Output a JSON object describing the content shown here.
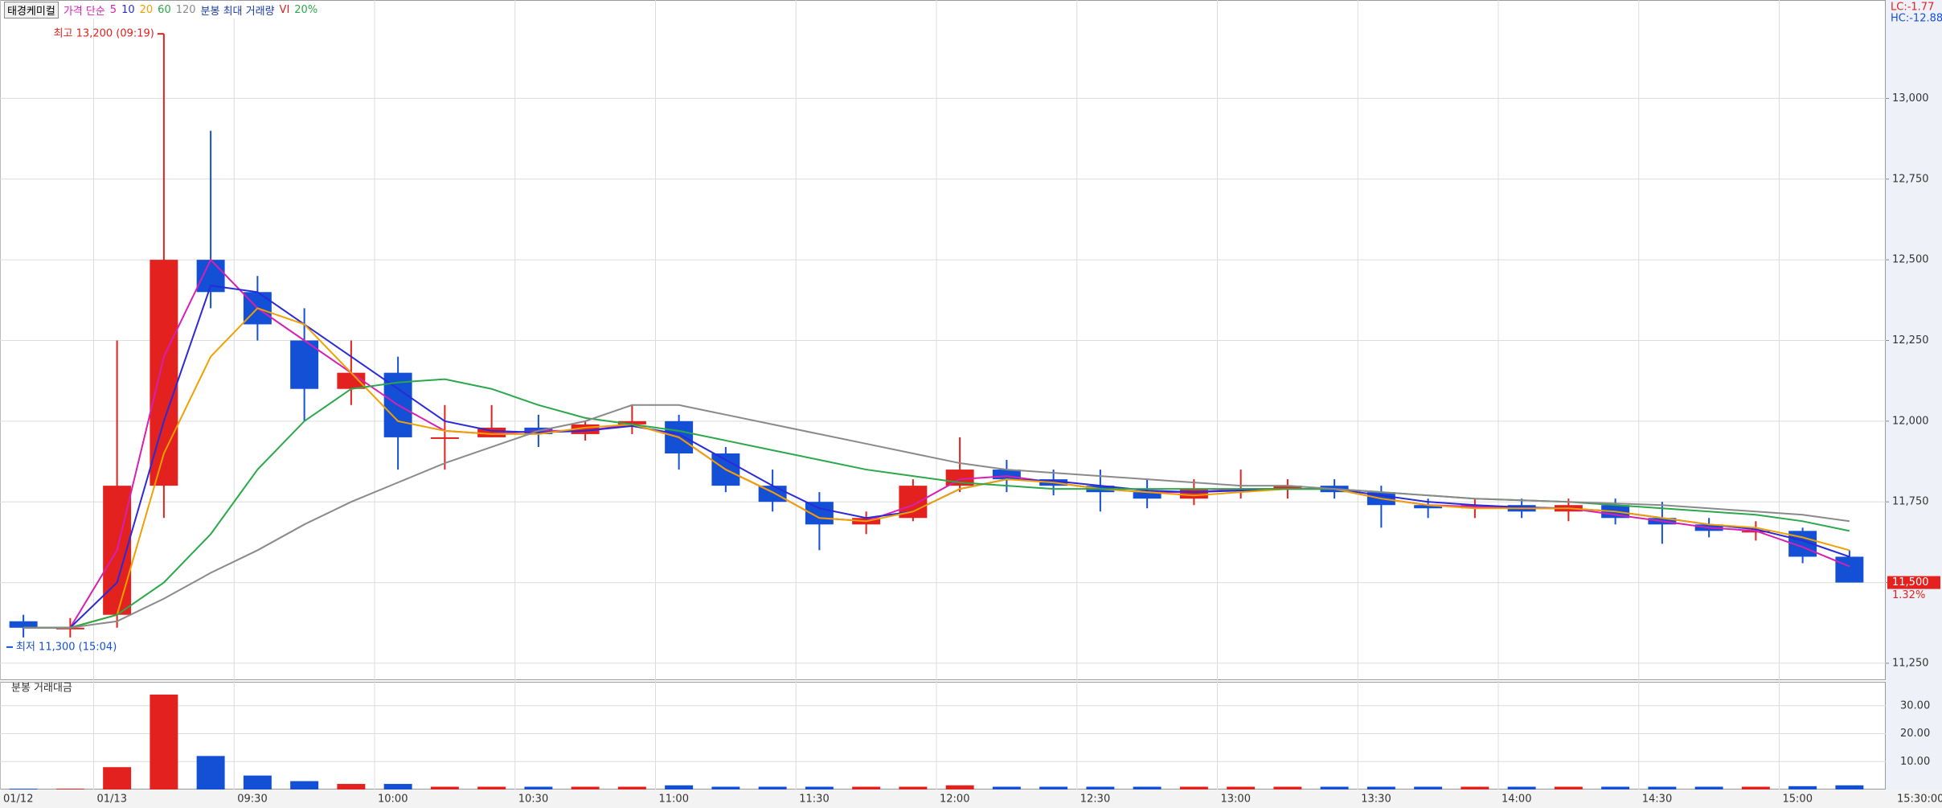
{
  "chart_data": [
    {
      "type": "candlestick",
      "title": "태경케미컬",
      "legend_prefix": "가격 단순",
      "indicators": [
        "분봉 최대 거래량",
        "VI",
        "20%"
      ],
      "categories": [
        "01/12",
        null,
        "01/13",
        null,
        null,
        "09:30",
        null,
        null,
        "10:00",
        null,
        null,
        "10:30",
        null,
        null,
        "11:00",
        null,
        null,
        "11:30",
        null,
        null,
        "12:00",
        null,
        null,
        "12:30",
        null,
        null,
        "13:00",
        null,
        null,
        "13:30",
        null,
        null,
        "14:00",
        null,
        null,
        "14:30",
        null,
        null,
        "15:00",
        null
      ],
      "open": [
        11380,
        11360,
        11400,
        11800,
        12500,
        12400,
        12250,
        12100,
        12150,
        11950,
        11950,
        11980,
        11960,
        11990,
        12000,
        11900,
        11800,
        11750,
        11680,
        11700,
        11800,
        11850,
        11820,
        11800,
        11780,
        11760,
        11790,
        11790,
        11800,
        11780,
        11740,
        11730,
        11740,
        11720,
        11740,
        11700,
        11680,
        11660,
        11660,
        11580
      ],
      "high": [
        11400,
        11390,
        12250,
        13200,
        12900,
        12450,
        12350,
        12250,
        12200,
        12050,
        12050,
        12020,
        12000,
        12050,
        12020,
        11920,
        11850,
        11780,
        11720,
        11820,
        11950,
        11880,
        11850,
        11850,
        11820,
        11820,
        11850,
        11820,
        11820,
        11800,
        11760,
        11760,
        11760,
        11760,
        11760,
        11750,
        11700,
        11690,
        11670,
        11600
      ],
      "low": [
        11330,
        11330,
        11360,
        11700,
        12350,
        12250,
        12000,
        12050,
        11850,
        11850,
        11950,
        11920,
        11940,
        11960,
        11850,
        11780,
        11720,
        11600,
        11650,
        11690,
        11780,
        11780,
        11770,
        11720,
        11730,
        11740,
        11760,
        11760,
        11760,
        11670,
        11700,
        11700,
        11700,
        11690,
        11680,
        11620,
        11640,
        11630,
        11560,
        11500
      ],
      "close": [
        11360,
        11360,
        11800,
        12500,
        12400,
        12300,
        12100,
        12150,
        11950,
        11950,
        11980,
        11960,
        11990,
        12000,
        11900,
        11800,
        11750,
        11680,
        11700,
        11800,
        11850,
        11820,
        11800,
        11780,
        11760,
        11790,
        11790,
        11800,
        11780,
        11740,
        11730,
        11740,
        11720,
        11740,
        11700,
        11680,
        11660,
        11660,
        11580,
        11500
      ],
      "up_color": "#e3211e",
      "down_color": "#1350d5",
      "series": [
        {
          "name": "5",
          "color": "#d81fb3",
          "values": [
            11360,
            11360,
            11600,
            12200,
            12500,
            12350,
            12250,
            12150,
            12050,
            11970,
            11960,
            11970,
            11970,
            11990,
            11950,
            11850,
            11780,
            11700,
            11690,
            11740,
            11820,
            11830,
            11810,
            11790,
            11780,
            11780,
            11790,
            11790,
            11790,
            11760,
            11740,
            11735,
            11730,
            11730,
            11710,
            11690,
            11670,
            11660,
            11610,
            11550
          ]
        },
        {
          "name": "10",
          "color": "#2a2ad8",
          "values": [
            11360,
            11360,
            11500,
            12000,
            12420,
            12400,
            12300,
            12200,
            12100,
            12000,
            11970,
            11965,
            11970,
            11985,
            11960,
            11880,
            11800,
            11730,
            11700,
            11720,
            11790,
            11820,
            11815,
            11800,
            11785,
            11780,
            11785,
            11790,
            11790,
            11770,
            11750,
            11740,
            11733,
            11730,
            11720,
            11700,
            11680,
            11665,
            11630,
            11580
          ]
        },
        {
          "name": "20",
          "color": "#f0a000",
          "values": [
            11360,
            11360,
            11400,
            11900,
            12200,
            12350,
            12300,
            12150,
            12000,
            11970,
            11960,
            11960,
            11980,
            11990,
            11950,
            11850,
            11780,
            11700,
            11690,
            11720,
            11790,
            11820,
            11810,
            11790,
            11780,
            11770,
            11780,
            11790,
            11790,
            11760,
            11740,
            11730,
            11730,
            11730,
            11720,
            11700,
            11680,
            11670,
            11640,
            11600
          ]
        },
        {
          "name": "60",
          "color": "#2aa84a",
          "values": [
            11360,
            11360,
            11400,
            11500,
            11650,
            11850,
            12000,
            12100,
            12120,
            12130,
            12100,
            12050,
            12010,
            11990,
            11970,
            11940,
            11910,
            11880,
            11850,
            11830,
            11810,
            11800,
            11790,
            11790,
            11790,
            11790,
            11790,
            11790,
            11790,
            11780,
            11770,
            11760,
            11755,
            11750,
            11740,
            11730,
            11720,
            11710,
            11690,
            11660
          ]
        },
        {
          "name": "120",
          "color": "#8a8a8a",
          "values": [
            11360,
            11360,
            11380,
            11450,
            11530,
            11600,
            11680,
            11750,
            11810,
            11870,
            11920,
            11970,
            12000,
            12050,
            12050,
            12020,
            11990,
            11960,
            11930,
            11900,
            11870,
            11850,
            11840,
            11830,
            11820,
            11810,
            11800,
            11800,
            11790,
            11780,
            11770,
            11760,
            11755,
            11750,
            11745,
            11740,
            11730,
            11720,
            11710,
            11690
          ]
        }
      ],
      "ylim": [
        11200,
        13300
      ],
      "yticks": [
        {
          "value": 11250,
          "label": "11,250"
        },
        {
          "value": 11500,
          "label": "11,500"
        },
        {
          "value": 11750,
          "label": "11,750"
        },
        {
          "value": 12000,
          "label": "12,000"
        },
        {
          "value": 12250,
          "label": "12,250"
        },
        {
          "value": 12500,
          "label": "12,500"
        },
        {
          "value": 12750,
          "label": "12,750"
        },
        {
          "value": 13000,
          "label": "13,000"
        }
      ],
      "grid": true,
      "high_annotation": {
        "value": 13200,
        "label": "최고 13,200 (09:19)"
      },
      "low_annotation": {
        "value": 11300,
        "label": "최저 11,300 (15:04)"
      },
      "last_price": {
        "value": 11500,
        "label": "11,500"
      },
      "change_label": "1.32%",
      "lc_label": "LC:-1.77",
      "hc_label": "HC:-12.88"
    },
    {
      "type": "bar",
      "title": "분봉 거래대금",
      "values": [
        0.3,
        0.3,
        8,
        34,
        12,
        5,
        3,
        2,
        2,
        1,
        1,
        1,
        1,
        1,
        1.5,
        1,
        1,
        1,
        1,
        1,
        1.5,
        1,
        1,
        1,
        1,
        1,
        1,
        1,
        1,
        1,
        1,
        1,
        1,
        1,
        1,
        1,
        1,
        1,
        1.2,
        1.5
      ],
      "ylim": [
        0,
        38
      ],
      "yticks": [
        {
          "value": 10,
          "label": "10.00"
        },
        {
          "value": 20,
          "label": "20.00"
        },
        {
          "value": 30,
          "label": "30.00"
        }
      ],
      "grid": true,
      "x_end_label": "15:30:00"
    }
  ]
}
